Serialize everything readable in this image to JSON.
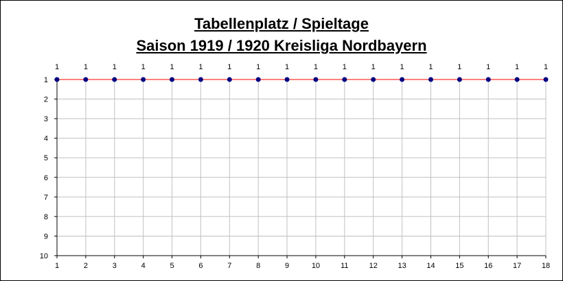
{
  "chart_data": {
    "type": "line",
    "title": "Tabellenplatz / Spieltage",
    "subtitle": "Saison 1919 / 1920 Kreisliga Nordbayern",
    "x": [
      1,
      2,
      3,
      4,
      5,
      6,
      7,
      8,
      9,
      10,
      11,
      12,
      13,
      14,
      15,
      16,
      17,
      18
    ],
    "series": [
      {
        "values": [
          1,
          1,
          1,
          1,
          1,
          1,
          1,
          1,
          1,
          1,
          1,
          1,
          1,
          1,
          1,
          1,
          1,
          1
        ]
      }
    ],
    "xlim": [
      1,
      18
    ],
    "ylim": [
      1,
      10
    ],
    "y_inverted": true,
    "y_ticks": [
      1,
      2,
      3,
      4,
      5,
      6,
      7,
      8,
      9,
      10
    ],
    "grid": true,
    "data_labels": true,
    "line_color": "#ff0000",
    "marker_color": "#000080",
    "grid_color": "#c0c0c0"
  }
}
